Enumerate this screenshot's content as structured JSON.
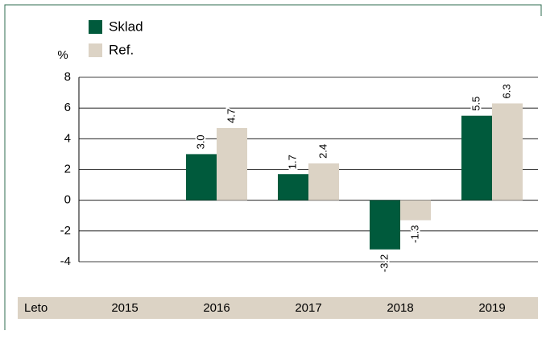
{
  "chart_data": {
    "type": "bar",
    "ylabel": "%",
    "xlabel": "Leto",
    "categories": [
      "2015",
      "2016",
      "2017",
      "2018",
      "2019"
    ],
    "series": [
      {
        "name": "Sklad",
        "color": "#005a3c",
        "values": [
          null,
          3.0,
          1.7,
          -3.2,
          5.5
        ],
        "value_labels": [
          null,
          "3.0",
          "1.7",
          "-3.2",
          "5.5"
        ]
      },
      {
        "name": "Ref.",
        "color": "#dcd3c5",
        "values": [
          null,
          4.7,
          2.4,
          -1.3,
          6.3
        ],
        "value_labels": [
          null,
          "4.7",
          "2.4",
          "-1.3",
          "6.3"
        ]
      }
    ],
    "ylim": [
      -4,
      8
    ],
    "yticks": [
      -4,
      -2,
      0,
      2,
      4,
      6,
      8
    ],
    "grid": true
  }
}
